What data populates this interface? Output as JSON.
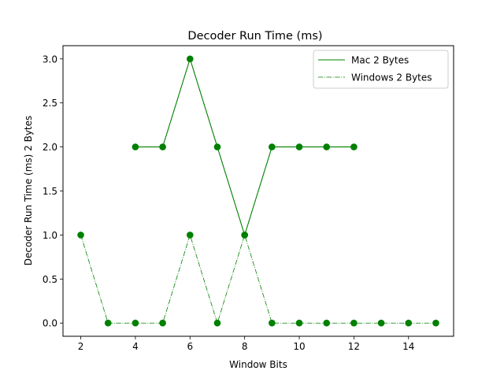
{
  "chart_data": {
    "type": "line",
    "title": "Decoder Run Time (ms)",
    "xlabel": "Window Bits",
    "ylabel": "Decoder Run Time (ms)  2 Bytes",
    "xlim": [
      1.35,
      15.65
    ],
    "ylim": [
      -0.15,
      3.15
    ],
    "xticks": [
      2,
      4,
      6,
      8,
      10,
      12,
      14
    ],
    "xtick_labels": [
      "2",
      "4",
      "6",
      "8",
      "10",
      "12",
      "14"
    ],
    "yticks": [
      0.0,
      0.5,
      1.0,
      1.5,
      2.0,
      2.5,
      3.0
    ],
    "ytick_labels": [
      "0.0",
      "0.5",
      "1.0",
      "1.5",
      "2.0",
      "2.5",
      "3.0"
    ],
    "grid": false,
    "legend_position": "top-right",
    "series": [
      {
        "name": "Mac 2 Bytes",
        "style": "solid",
        "color": "#008000",
        "x": [
          4,
          5,
          6,
          7,
          8,
          9,
          10,
          11,
          12
        ],
        "y": [
          2,
          2,
          3,
          2,
          1,
          2,
          2,
          2,
          2
        ]
      },
      {
        "name": "Windows 2 Bytes",
        "style": "dashdot",
        "color": "#008000",
        "x": [
          2,
          3,
          4,
          5,
          6,
          7,
          8,
          9,
          10,
          11,
          12,
          13,
          14,
          15
        ],
        "y": [
          1,
          0,
          0,
          0,
          1,
          0,
          1,
          0,
          0,
          0,
          0,
          0,
          0,
          0
        ]
      }
    ]
  }
}
